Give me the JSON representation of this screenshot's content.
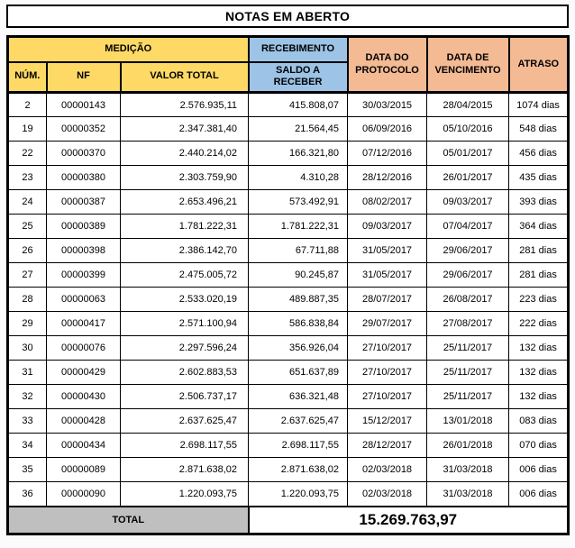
{
  "title": "NOTAS EM ABERTO",
  "colors": {
    "header_yellow": "#FFD966",
    "header_blue": "#9DC3E6",
    "header_salmon": "#F3BA94",
    "footer_gray": "#BFBFBF",
    "border_black": "#000000"
  },
  "table": {
    "header": {
      "medicao": "MEDIÇÃO",
      "recebimento": "RECEBIMENTO",
      "num": "NÚM.",
      "nf": "NF",
      "valor_total": "VALOR TOTAL",
      "saldo_a_receber": "SALDO A RECEBER",
      "data_protocolo": "DATA DO PROTOCOLO",
      "data_vencimento": "DATA DE VENCIMENTO",
      "atraso": "ATRASO"
    },
    "rows": [
      {
        "num": "2",
        "nf": "00000143",
        "valor_total": "2.576.935,11",
        "saldo_a_receber": "415.808,07",
        "protocolo": "30/03/2015",
        "vencimento": "28/04/2015",
        "atraso": "1074 dias"
      },
      {
        "num": "19",
        "nf": "00000352",
        "valor_total": "2.347.381,40",
        "saldo_a_receber": "21.564,45",
        "protocolo": "06/09/2016",
        "vencimento": "05/10/2016",
        "atraso": "548 dias"
      },
      {
        "num": "22",
        "nf": "00000370",
        "valor_total": "2.440.214,02",
        "saldo_a_receber": "166.321,80",
        "protocolo": "07/12/2016",
        "vencimento": "05/01/2017",
        "atraso": "456 dias"
      },
      {
        "num": "23",
        "nf": "00000380",
        "valor_total": "2.303.759,90",
        "saldo_a_receber": "4.310,28",
        "protocolo": "28/12/2016",
        "vencimento": "26/01/2017",
        "atraso": "435 dias"
      },
      {
        "num": "24",
        "nf": "00000387",
        "valor_total": "2.653.496,21",
        "saldo_a_receber": "573.492,91",
        "protocolo": "08/02/2017",
        "vencimento": "09/03/2017",
        "atraso": "393 dias"
      },
      {
        "num": "25",
        "nf": "00000389",
        "valor_total": "1.781.222,31",
        "saldo_a_receber": "1.781.222,31",
        "protocolo": "09/03/2017",
        "vencimento": "07/04/2017",
        "atraso": "364 dias"
      },
      {
        "num": "26",
        "nf": "00000398",
        "valor_total": "2.386.142,70",
        "saldo_a_receber": "67.711,88",
        "protocolo": "31/05/2017",
        "vencimento": "29/06/2017",
        "atraso": "281 dias"
      },
      {
        "num": "27",
        "nf": "00000399",
        "valor_total": "2.475.005,72",
        "saldo_a_receber": "90.245,87",
        "protocolo": "31/05/2017",
        "vencimento": "29/06/2017",
        "atraso": "281 dias"
      },
      {
        "num": "28",
        "nf": "00000063",
        "valor_total": "2.533.020,19",
        "saldo_a_receber": "489.887,35",
        "protocolo": "28/07/2017",
        "vencimento": "26/08/2017",
        "atraso": "223 dias"
      },
      {
        "num": "29",
        "nf": "00000417",
        "valor_total": "2.571.100,94",
        "saldo_a_receber": "586.838,84",
        "protocolo": "29/07/2017",
        "vencimento": "27/08/2017",
        "atraso": "222 dias"
      },
      {
        "num": "30",
        "nf": "00000076",
        "valor_total": "2.297.596,24",
        "saldo_a_receber": "356.926,04",
        "protocolo": "27/10/2017",
        "vencimento": "25/11/2017",
        "atraso": "132 dias"
      },
      {
        "num": "31",
        "nf": "00000429",
        "valor_total": "2.602.883,53",
        "saldo_a_receber": "651.637,89",
        "protocolo": "27/10/2017",
        "vencimento": "25/11/2017",
        "atraso": "132 dias"
      },
      {
        "num": "32",
        "nf": "00000430",
        "valor_total": "2.506.737,17",
        "saldo_a_receber": "636.321,48",
        "protocolo": "27/10/2017",
        "vencimento": "25/11/2017",
        "atraso": "132 dias"
      },
      {
        "num": "33",
        "nf": "00000428",
        "valor_total": "2.637.625,47",
        "saldo_a_receber": "2.637.625,47",
        "protocolo": "15/12/2017",
        "vencimento": "13/01/2018",
        "atraso": "083 dias"
      },
      {
        "num": "34",
        "nf": "00000434",
        "valor_total": "2.698.117,55",
        "saldo_a_receber": "2.698.117,55",
        "protocolo": "28/12/2017",
        "vencimento": "26/01/2018",
        "atraso": "070 dias"
      },
      {
        "num": "35",
        "nf": "00000089",
        "valor_total": "2.871.638,02",
        "saldo_a_receber": "2.871.638,02",
        "protocolo": "02/03/2018",
        "vencimento": "31/03/2018",
        "atraso": "006 dias"
      },
      {
        "num": "36",
        "nf": "00000090",
        "valor_total": "1.220.093,75",
        "saldo_a_receber": "1.220.093,75",
        "protocolo": "02/03/2018",
        "vencimento": "31/03/2018",
        "atraso": "006 dias"
      }
    ],
    "footer": {
      "label": "TOTAL",
      "total": "15.269.763,97"
    }
  }
}
